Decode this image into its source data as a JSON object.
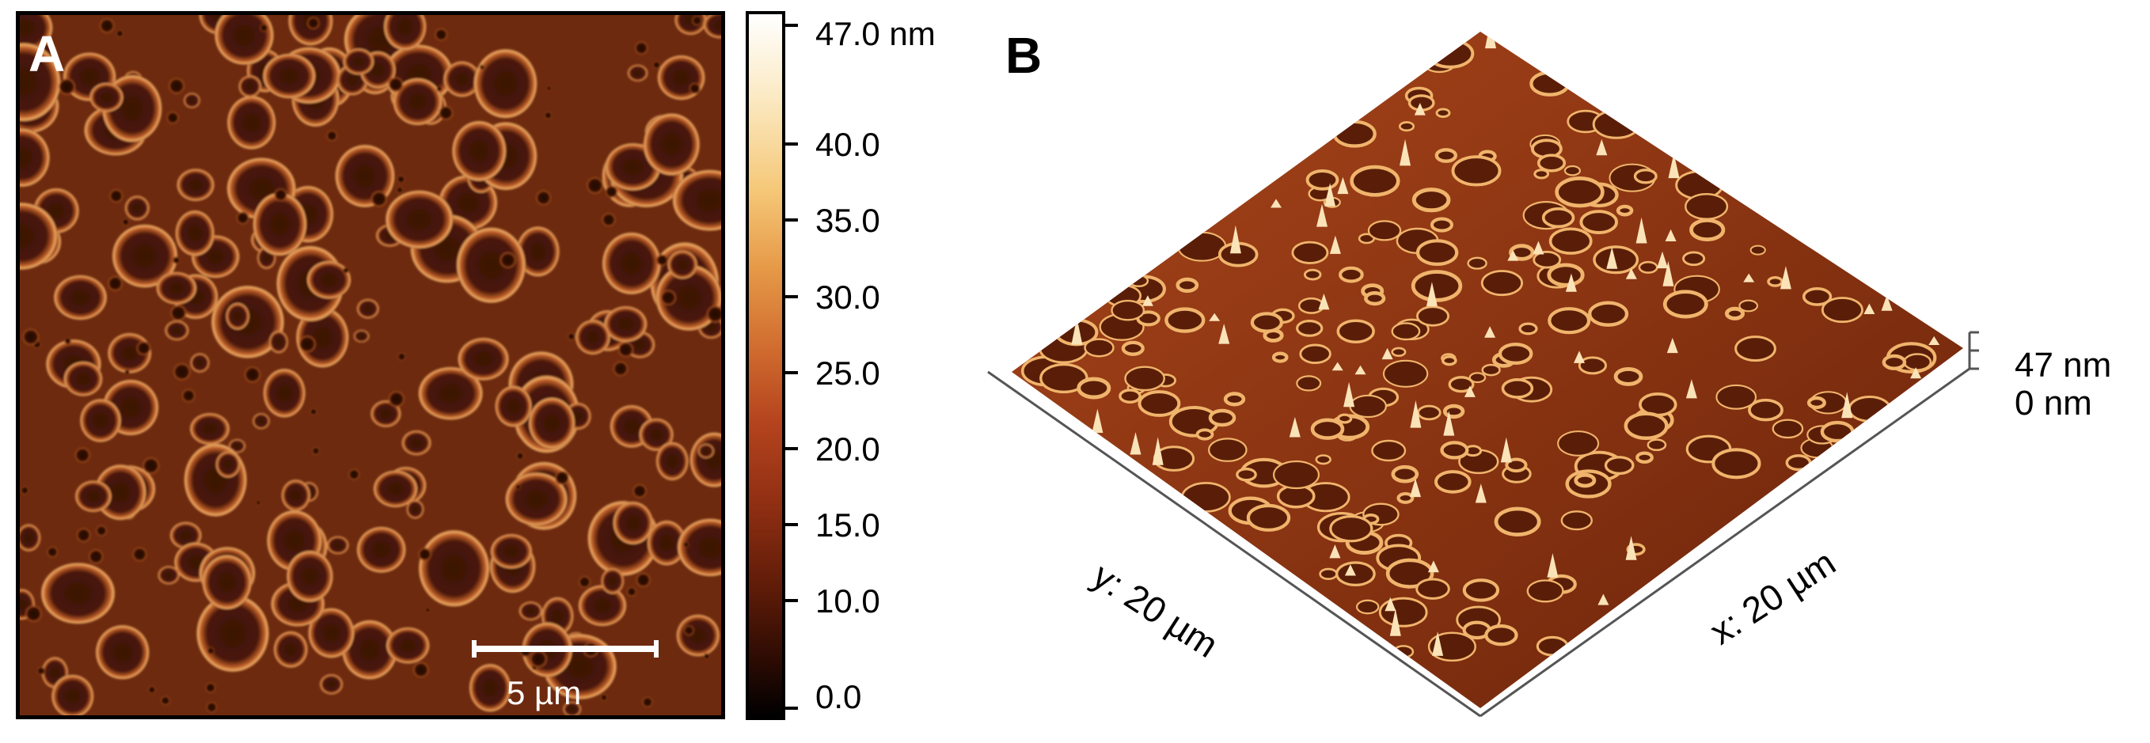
{
  "panelA": {
    "letter": "A",
    "scalebar_label": "5 µm",
    "colorbar": {
      "labels": [
        "47.0 nm",
        "40.0",
        "35.0",
        "30.0",
        "25.0",
        "20.0",
        "15.0",
        "10.0",
        "0.0"
      ],
      "colors": [
        "#ffffff",
        "#f5c878",
        "#cf6a2e",
        "#8f2e12",
        "#000000"
      ]
    }
  },
  "panelB": {
    "letter": "B",
    "y_axis_label": "y: 20 µm",
    "x_axis_label": "x: 20 µm",
    "z_max_label": "47 nm",
    "z_min_label": "0 nm"
  }
}
